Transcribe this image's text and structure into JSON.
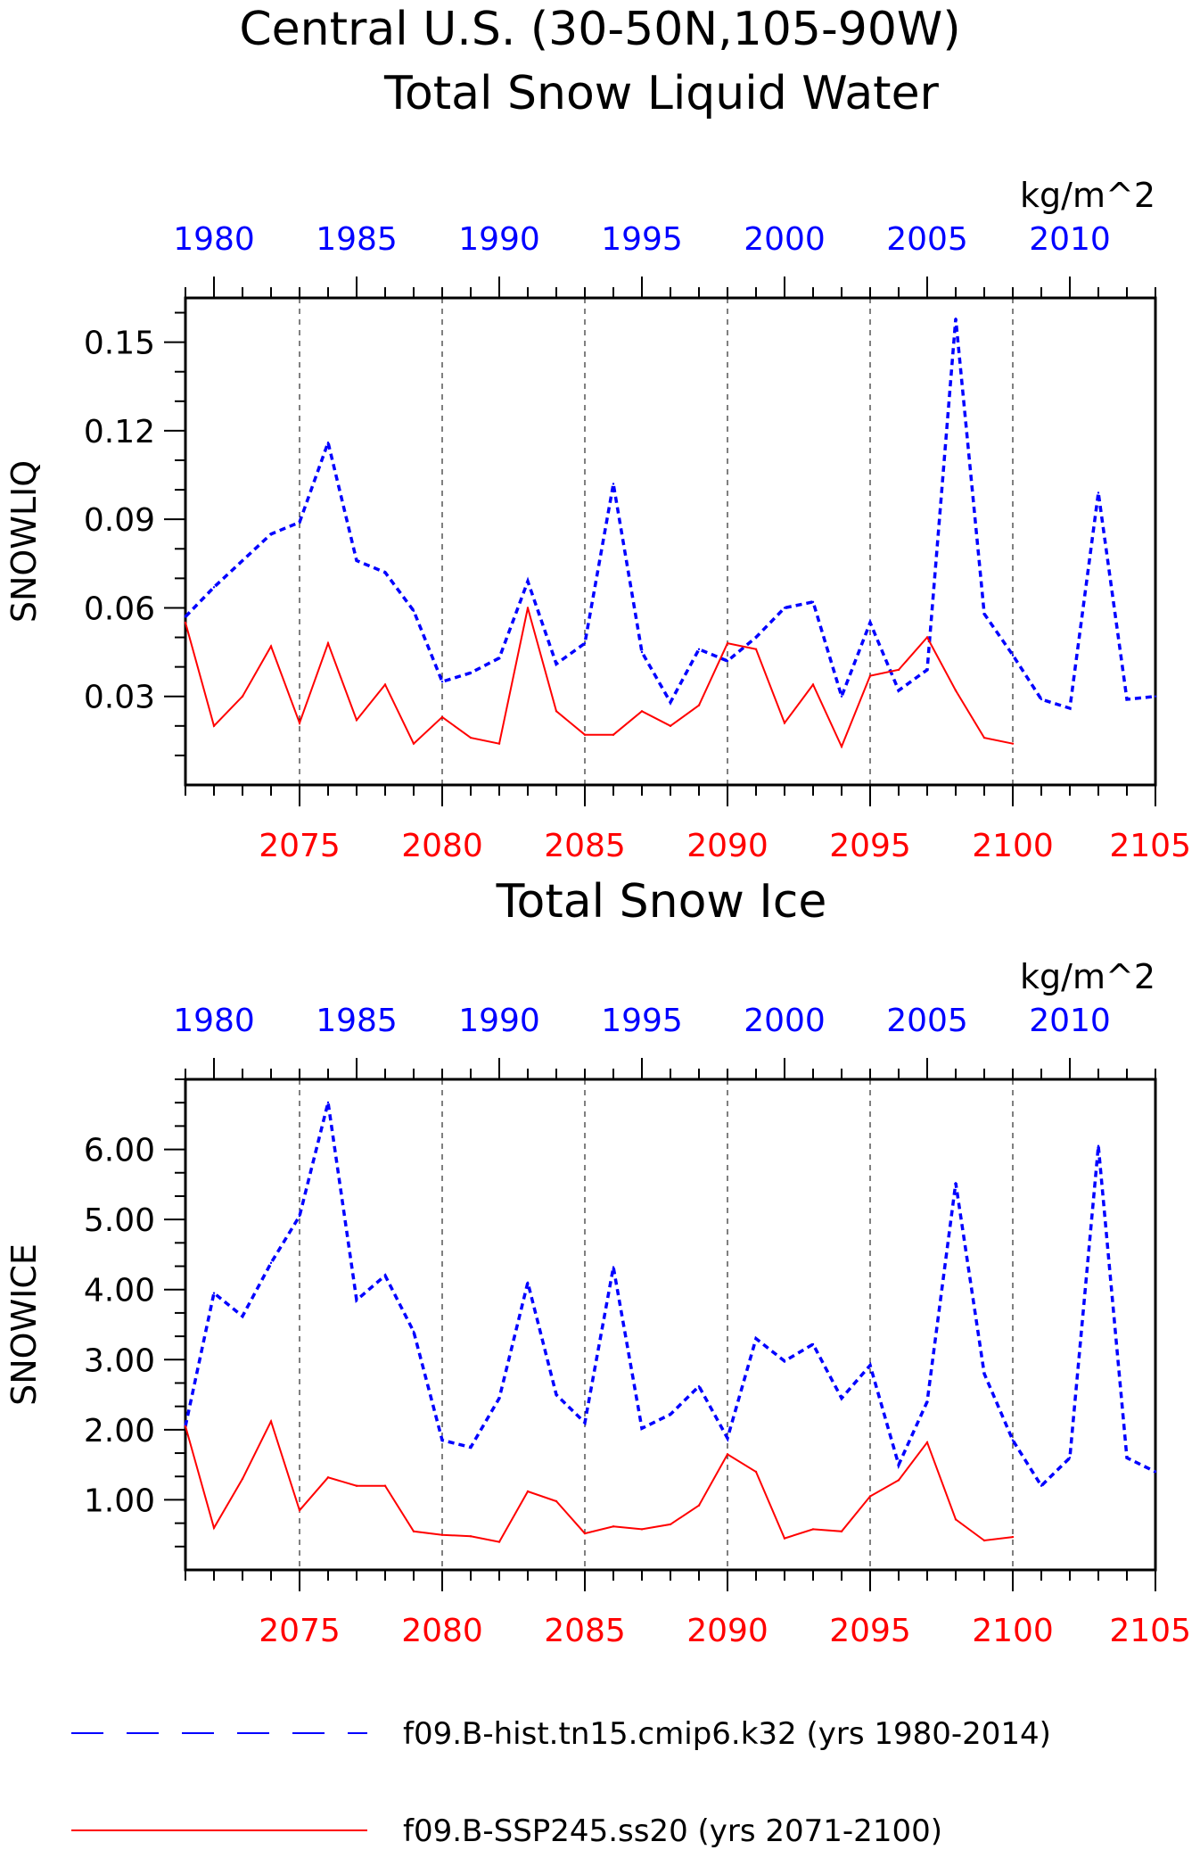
{
  "title_line1": "Central U.S. (30-50N,105-90W)",
  "colors": {
    "hist": "#0000ff",
    "ssp": "#ff0000",
    "axis": "#000000"
  },
  "legend": [
    {
      "label": "f09.B-hist.tn15.cmip6.k32 (yrs 1980-2014)",
      "color": "#0000ff",
      "style": "dashed"
    },
    {
      "label": "f09.B-SSP245.ss20 (yrs 2071-2100)",
      "color": "#ff0000",
      "style": "solid"
    }
  ],
  "chart_data": [
    {
      "type": "line",
      "title": "Total Snow Liquid Water",
      "units": "kg/m^2",
      "ylabel": "SNOWLIQ",
      "ylim": [
        0.0,
        0.165
      ],
      "yticks": [
        0.03,
        0.06,
        0.09,
        0.12,
        0.15
      ],
      "ytick_labels": [
        "0.03",
        "0.06",
        "0.09",
        "0.12",
        "0.15"
      ],
      "top_axis": {
        "range": [
          1979,
          2013
        ],
        "ticks": [
          1980,
          1985,
          1990,
          1995,
          2000,
          2005,
          2010
        ],
        "color": "#0000ff"
      },
      "bottom_axis": {
        "range": [
          2071,
          2105
        ],
        "ticks": [
          2075,
          2080,
          2085,
          2090,
          2095,
          2100,
          2105
        ],
        "color": "#ff0000"
      },
      "series": [
        {
          "name": "f09.B-hist.tn15.cmip6.k32 (yrs 1980-2014)",
          "axis": "top",
          "style": "dashed",
          "color": "#0000ff",
          "x": [
            1979,
            1980,
            1981,
            1982,
            1983,
            1984,
            1985,
            1986,
            1987,
            1988,
            1989,
            1990,
            1991,
            1992,
            1993,
            1994,
            1995,
            1996,
            1997,
            1998,
            1999,
            2000,
            2001,
            2002,
            2003,
            2004,
            2005,
            2006,
            2007,
            2008,
            2009,
            2010,
            2011,
            2012,
            2013
          ],
          "values": [
            0.057,
            0.067,
            0.076,
            0.085,
            0.089,
            0.116,
            0.076,
            0.072,
            0.059,
            0.035,
            0.038,
            0.043,
            0.069,
            0.041,
            0.048,
            0.102,
            0.045,
            0.028,
            0.046,
            0.042,
            0.05,
            0.06,
            0.062,
            0.03,
            0.055,
            0.032,
            0.039,
            0.158,
            0.058,
            0.044,
            0.029,
            0.026,
            0.099,
            0.029,
            0.03
          ]
        },
        {
          "name": "f09.B-SSP245.ss20 (yrs 2071-2100)",
          "axis": "bottom",
          "style": "solid",
          "color": "#ff0000",
          "x": [
            2071,
            2072,
            2073,
            2074,
            2075,
            2076,
            2077,
            2078,
            2079,
            2080,
            2081,
            2082,
            2083,
            2084,
            2085,
            2086,
            2087,
            2088,
            2089,
            2090,
            2091,
            2092,
            2093,
            2094,
            2095,
            2096,
            2097,
            2098,
            2099,
            2100
          ],
          "values": [
            0.055,
            0.02,
            0.03,
            0.047,
            0.021,
            0.048,
            0.022,
            0.034,
            0.014,
            0.023,
            0.016,
            0.014,
            0.06,
            0.025,
            0.017,
            0.017,
            0.025,
            0.02,
            0.027,
            0.048,
            0.046,
            0.021,
            0.034,
            0.013,
            0.037,
            0.039,
            0.05,
            0.032,
            0.016,
            0.014
          ]
        }
      ]
    },
    {
      "type": "line",
      "title": "Total Snow Ice",
      "units": "kg/m^2",
      "ylabel": "SNOWICE",
      "ylim": [
        0.0,
        7.0
      ],
      "yticks": [
        1,
        2,
        3,
        4,
        5,
        6
      ],
      "ytick_labels": [
        "1.00",
        "2.00",
        "3.00",
        "4.00",
        "5.00",
        "6.00"
      ],
      "top_axis": {
        "range": [
          1979,
          2013
        ],
        "ticks": [
          1980,
          1985,
          1990,
          1995,
          2000,
          2005,
          2010
        ],
        "color": "#0000ff"
      },
      "bottom_axis": {
        "range": [
          2071,
          2105
        ],
        "ticks": [
          2075,
          2080,
          2085,
          2090,
          2095,
          2100,
          2105
        ],
        "color": "#ff0000"
      },
      "series": [
        {
          "name": "f09.B-hist.tn15.cmip6.k32 (yrs 1980-2014)",
          "axis": "top",
          "style": "dashed",
          "color": "#0000ff",
          "x": [
            1979,
            1980,
            1981,
            1982,
            1983,
            1984,
            1985,
            1986,
            1987,
            1988,
            1989,
            1990,
            1991,
            1992,
            1993,
            1994,
            1995,
            1996,
            1997,
            1998,
            1999,
            2000,
            2001,
            2002,
            2003,
            2004,
            2005,
            2006,
            2007,
            2008,
            2009,
            2010,
            2011,
            2012,
            2013
          ],
          "values": [
            2.05,
            3.95,
            3.62,
            4.38,
            5.05,
            6.67,
            3.85,
            4.2,
            3.4,
            1.85,
            1.75,
            2.45,
            4.1,
            2.5,
            2.1,
            4.32,
            2.02,
            2.22,
            2.62,
            1.88,
            3.3,
            2.98,
            3.22,
            2.45,
            2.92,
            1.5,
            2.4,
            5.52,
            2.8,
            1.85,
            1.2,
            1.6,
            6.05,
            1.6,
            1.4
          ]
        },
        {
          "name": "f09.B-SSP245.ss20 (yrs 2071-2100)",
          "axis": "bottom",
          "style": "solid",
          "color": "#ff0000",
          "x": [
            2071,
            2072,
            2073,
            2074,
            2075,
            2076,
            2077,
            2078,
            2079,
            2080,
            2081,
            2082,
            2083,
            2084,
            2085,
            2086,
            2087,
            2088,
            2089,
            2090,
            2091,
            2092,
            2093,
            2094,
            2095,
            2096,
            2097,
            2098,
            2099,
            2100
          ],
          "values": [
            2.05,
            0.6,
            1.3,
            2.12,
            0.85,
            1.32,
            1.2,
            1.2,
            0.55,
            0.5,
            0.48,
            0.4,
            1.12,
            0.98,
            0.52,
            0.62,
            0.58,
            0.65,
            0.92,
            1.65,
            1.4,
            0.45,
            0.58,
            0.55,
            1.05,
            1.28,
            1.82,
            0.72,
            0.42,
            0.47
          ]
        }
      ]
    }
  ]
}
